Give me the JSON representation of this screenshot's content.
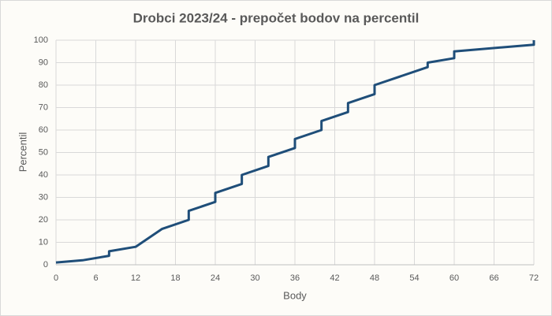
{
  "chart_data": {
    "type": "line",
    "title": "Drobci 2023/24 - prepočet bodov na percentil",
    "x_label": "Body",
    "y_label": "Percentil",
    "x": [
      0,
      4,
      8,
      8,
      12,
      16,
      20,
      20,
      24,
      24,
      28,
      28,
      32,
      32,
      36,
      36,
      40,
      40,
      44,
      44,
      48,
      48,
      56,
      56,
      60,
      60,
      72,
      72
    ],
    "series": [
      {
        "name": "Percentil",
        "color": "#1f4e79",
        "values": [
          1,
          2,
          4,
          6,
          8,
          16,
          20,
          24,
          28,
          32,
          36,
          40,
          44,
          48,
          52,
          56,
          60,
          64,
          68,
          72,
          76,
          80,
          88,
          90,
          92,
          95,
          98,
          100
        ]
      }
    ],
    "xlim": [
      0,
      72
    ],
    "xticks": [
      0,
      6,
      12,
      18,
      24,
      30,
      36,
      42,
      48,
      54,
      60,
      66,
      72
    ],
    "ylim": [
      0,
      100
    ],
    "yticks": [
      0,
      10,
      20,
      30,
      40,
      50,
      60,
      70,
      80,
      90,
      100
    ],
    "grid": true
  }
}
